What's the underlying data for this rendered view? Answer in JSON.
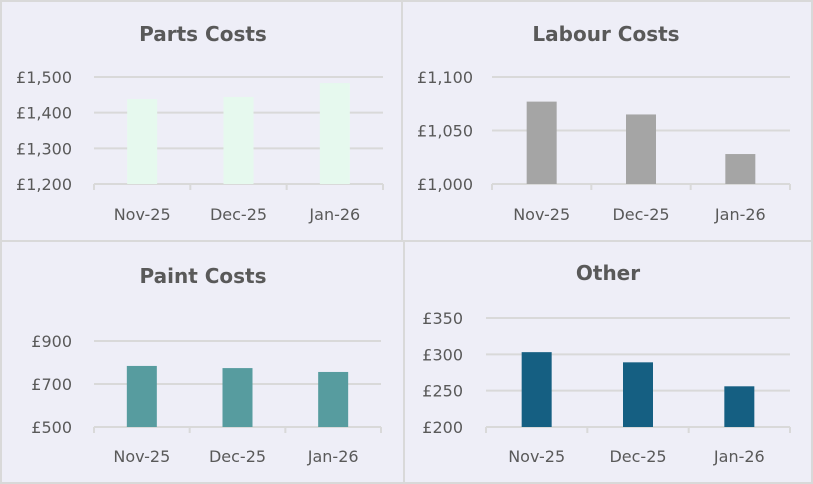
{
  "chart_data": [
    {
      "type": "bar",
      "title": "Parts Costs",
      "categories": [
        "Nov-25",
        "Dec-25",
        "Jan-26"
      ],
      "values": [
        1438,
        1444,
        1483
      ],
      "ylim": [
        1200,
        1500
      ],
      "yticks": [
        1200,
        1300,
        1400,
        1500
      ],
      "ytick_labels": [
        "£1,200",
        "£1,300",
        "£1,400",
        "£1,500"
      ],
      "color": "#e6f9ee",
      "grid": true
    },
    {
      "type": "bar",
      "title": "Labour Costs",
      "categories": [
        "Nov-25",
        "Dec-25",
        "Jan-26"
      ],
      "values": [
        1077,
        1065,
        1028
      ],
      "ylim": [
        1000,
        1100
      ],
      "yticks": [
        1000,
        1050,
        1100
      ],
      "ytick_labels": [
        "£1,000",
        "£1,050",
        "£1,100"
      ],
      "color": "#a5a5a5",
      "grid": true
    },
    {
      "type": "bar",
      "title": "Paint Costs",
      "categories": [
        "Nov-25",
        "Dec-25",
        "Jan-26"
      ],
      "values": [
        784,
        774,
        756
      ],
      "ylim": [
        500,
        900
      ],
      "yticks": [
        500,
        700,
        900
      ],
      "ytick_labels": [
        "£500",
        "£700",
        "£900"
      ],
      "color": "#579c9f",
      "grid": true
    },
    {
      "type": "bar",
      "title": "Other",
      "categories": [
        "Nov-25",
        "Dec-25",
        "Jan-26"
      ],
      "values": [
        303,
        289,
        256
      ],
      "ylim": [
        200,
        350
      ],
      "yticks": [
        200,
        250,
        300,
        350
      ],
      "ytick_labels": [
        "£200",
        "£250",
        "£300",
        "£350"
      ],
      "color": "#155f82",
      "grid": true
    }
  ]
}
